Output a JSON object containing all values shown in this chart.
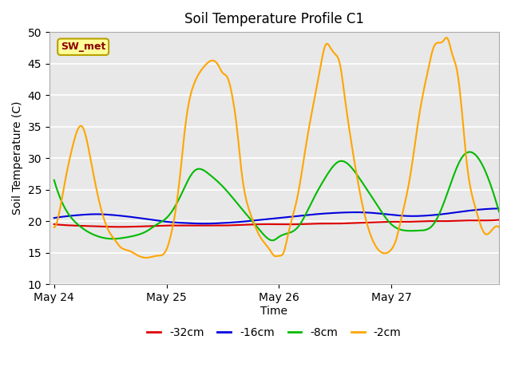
{
  "title": "Soil Temperature Profile C1",
  "xlabel": "Time",
  "ylabel": "Soil Temperature (C)",
  "ylim": [
    10,
    50
  ],
  "yticks": [
    10,
    15,
    20,
    25,
    30,
    35,
    40,
    45,
    50
  ],
  "bg_color": "#e8e8e8",
  "legend_label": "SW_met",
  "legend_bg": "#ffff99",
  "legend_border": "#b8a000",
  "series": {
    "-32cm": {
      "color": "#dd0000",
      "linewidth": 1.5
    },
    "-16cm": {
      "color": "#0000dd",
      "linewidth": 1.5
    },
    "-8cm": {
      "color": "#00bb00",
      "linewidth": 1.5
    },
    "-2cm": {
      "color": "#ffa500",
      "linewidth": 1.5
    }
  },
  "x_ticks_labels": [
    "May 24",
    "May 25",
    "May 26",
    "May 27"
  ],
  "x_ticks_pos": [
    0,
    24,
    48,
    72
  ],
  "xlim": [
    -1,
    95
  ],
  "s32_knots_t": [
    0,
    4,
    8,
    12,
    16,
    20,
    24,
    28,
    32,
    36,
    40,
    44,
    48,
    52,
    56,
    60,
    64,
    68,
    72,
    76,
    80,
    84,
    88,
    92,
    95
  ],
  "s32_knots_v": [
    19.5,
    19.3,
    19.2,
    19.1,
    19.1,
    19.2,
    19.3,
    19.3,
    19.3,
    19.3,
    19.4,
    19.5,
    19.5,
    19.5,
    19.6,
    19.6,
    19.7,
    19.8,
    19.9,
    19.9,
    20.0,
    20.0,
    20.1,
    20.1,
    20.2
  ],
  "s16_knots_t": [
    0,
    3,
    6,
    9,
    12,
    16,
    20,
    24,
    28,
    32,
    36,
    40,
    44,
    48,
    52,
    56,
    60,
    64,
    68,
    72,
    76,
    80,
    84,
    88,
    92,
    95
  ],
  "s16_knots_v": [
    20.5,
    20.8,
    21.0,
    21.1,
    21.0,
    20.7,
    20.3,
    19.9,
    19.7,
    19.6,
    19.7,
    19.9,
    20.2,
    20.5,
    20.8,
    21.1,
    21.3,
    21.4,
    21.3,
    21.0,
    20.8,
    20.9,
    21.2,
    21.6,
    21.9,
    22.0
  ],
  "s8_knots_t": [
    0,
    2,
    5,
    8,
    12,
    16,
    20,
    22,
    24,
    27,
    30,
    33,
    36,
    40,
    44,
    47,
    48,
    52,
    55,
    58,
    61,
    65,
    69,
    72,
    75,
    78,
    81,
    84,
    87,
    91,
    95
  ],
  "s8_knots_v": [
    26.5,
    22.5,
    19.5,
    18.0,
    17.2,
    17.5,
    18.5,
    19.5,
    20.5,
    24.0,
    28.0,
    27.5,
    25.5,
    22.0,
    18.5,
    17.0,
    17.5,
    19.0,
    23.0,
    27.0,
    29.5,
    27.0,
    22.5,
    19.5,
    18.5,
    18.5,
    19.5,
    24.5,
    30.0,
    29.5,
    21.5
  ],
  "s2_knots_t": [
    0,
    1,
    2,
    4,
    6,
    8,
    10,
    12,
    13,
    14,
    16,
    18,
    20,
    22,
    24,
    25,
    26,
    27,
    28,
    30,
    32,
    35,
    36,
    37,
    38,
    39,
    40,
    42,
    44,
    46,
    47,
    48,
    49,
    50,
    52,
    54,
    56,
    57,
    58,
    59,
    60,
    61,
    62,
    64,
    66,
    68,
    70,
    72,
    73,
    74,
    76,
    78,
    80,
    81,
    83,
    84,
    85,
    86,
    87,
    88,
    90,
    92,
    94,
    95
  ],
  "s2_knots_v": [
    19.0,
    21.0,
    25.0,
    32.0,
    35.0,
    29.0,
    22.0,
    18.0,
    17.0,
    16.0,
    15.3,
    14.5,
    14.2,
    14.5,
    15.5,
    18.0,
    22.0,
    28.0,
    35.0,
    42.0,
    44.5,
    44.8,
    43.5,
    42.8,
    40.0,
    35.0,
    28.0,
    21.0,
    17.5,
    15.5,
    14.5,
    14.5,
    15.0,
    18.0,
    24.0,
    33.0,
    41.0,
    45.0,
    48.0,
    47.5,
    46.5,
    45.0,
    40.0,
    30.0,
    22.0,
    17.0,
    15.0,
    15.5,
    17.0,
    20.0,
    27.0,
    37.0,
    44.5,
    47.5,
    48.5,
    49.0,
    46.5,
    44.0,
    38.0,
    30.0,
    22.0,
    18.0,
    19.0,
    19.0
  ]
}
